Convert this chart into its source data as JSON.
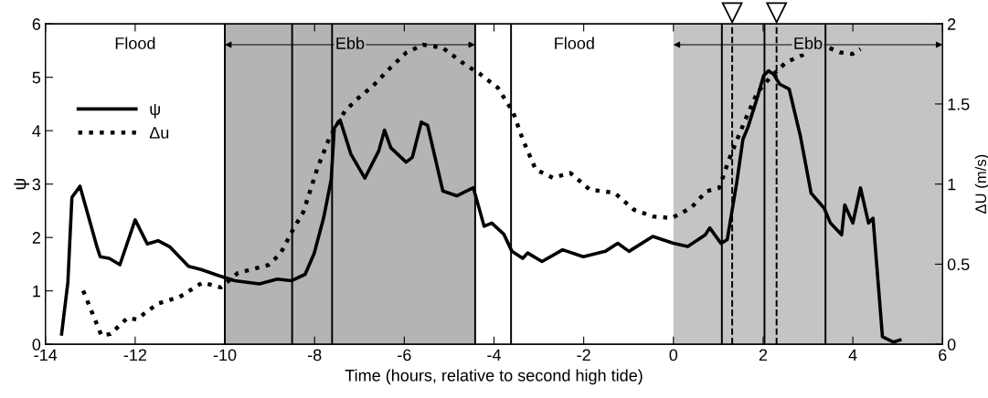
{
  "chart_data": {
    "type": "line",
    "xlabel": "Time (hours, relative to second high tide)",
    "ylabel": "ψ",
    "y2label": "ΔU (m/s)",
    "xlim": [
      -14,
      6
    ],
    "xticks": [
      -14,
      -12,
      -10,
      -8,
      -6,
      -4,
      -2,
      0,
      2,
      4,
      6
    ],
    "ylim": [
      0,
      6
    ],
    "yticks": [
      0,
      1,
      2,
      3,
      4,
      5,
      6
    ],
    "y2lim": [
      0,
      2
    ],
    "y2ticks": [
      0,
      0.5,
      1,
      1.5,
      2
    ],
    "legend": "top left",
    "grid": false,
    "series": [
      {
        "name": "ψ",
        "color": "#000000",
        "line_style": "solid",
        "x": [
          -13.64,
          -13.5,
          -13.41,
          -13.23,
          -12.85,
          -12.78,
          -12.58,
          -12.34,
          -12.0,
          -11.73,
          -11.49,
          -11.22,
          -10.81,
          -10.53,
          -10.12,
          -9.78,
          -9.23,
          -8.83,
          -8.52,
          -8.21,
          -8.01,
          -7.8,
          -7.63,
          -7.56,
          -7.43,
          -7.19,
          -6.88,
          -6.57,
          -6.44,
          -6.3,
          -5.96,
          -5.82,
          -5.62,
          -5.48,
          -5.14,
          -4.83,
          -4.46,
          -4.22,
          -4.05,
          -3.78,
          -3.6,
          -3.36,
          -3.25,
          -2.93,
          -2.47,
          -2.01,
          -1.52,
          -1.24,
          -0.99,
          -0.46,
          0,
          0.32,
          0.71,
          0.81,
          1.06,
          1.2,
          1.41,
          1.55,
          1.66,
          1.87,
          2.01,
          2.12,
          2.23,
          2.37,
          2.58,
          2.83,
          3.07,
          3.36,
          3.5,
          3.75,
          3.82,
          4.0,
          4.17,
          4.35,
          4.45,
          4.66,
          4.91,
          5.05
        ],
        "values": [
          0.19,
          1.16,
          2.75,
          2.96,
          1.82,
          1.64,
          1.61,
          1.49,
          2.33,
          1.88,
          1.94,
          1.82,
          1.46,
          1.4,
          1.28,
          1.19,
          1.13,
          1.22,
          1.19,
          1.31,
          1.7,
          2.36,
          3.08,
          4.05,
          4.2,
          3.56,
          3.11,
          3.62,
          4.01,
          3.68,
          3.41,
          3.5,
          4.16,
          4.1,
          2.87,
          2.78,
          2.93,
          2.21,
          2.27,
          2.06,
          1.74,
          1.61,
          1.71,
          1.55,
          1.77,
          1.64,
          1.74,
          1.89,
          1.74,
          2.02,
          1.89,
          1.83,
          2.05,
          2.18,
          1.89,
          1.96,
          3.02,
          3.84,
          4.06,
          4.62,
          5.03,
          5.12,
          5.06,
          4.87,
          4.78,
          3.9,
          2.83,
          2.55,
          2.27,
          2.05,
          2.61,
          2.27,
          2.93,
          2.27,
          2.36,
          0.14,
          0.04,
          0.08
        ]
      },
      {
        "name": "Δu",
        "color": "#000000",
        "line_style": "dotted",
        "axis": "y2",
        "x": [
          -13.16,
          -12.75,
          -12.55,
          -12.17,
          -11.97,
          -11.49,
          -11.01,
          -10.5,
          -10.09,
          -9.71,
          -9.03,
          -8.76,
          -8.48,
          -8.25,
          -7.94,
          -7.67,
          -7.32,
          -6.98,
          -6.71,
          -6.3,
          -5.96,
          -5.58,
          -5.14,
          -4.66,
          -4.32,
          -3.91,
          -3.57,
          -3.36,
          -3.07,
          -2.69,
          -2.3,
          -1.87,
          -1.31,
          -0.88,
          -0.46,
          -0.04,
          0.39,
          0.74,
          1.02,
          1.24,
          1.59,
          1.87,
          2.16,
          2.51,
          2.93,
          3.36,
          3.71,
          3.99,
          4.17
        ],
        "values": [
          0.335,
          0.054,
          0.064,
          0.165,
          0.155,
          0.255,
          0.295,
          0.385,
          0.355,
          0.445,
          0.495,
          0.566,
          0.716,
          0.826,
          1.097,
          1.288,
          1.458,
          1.549,
          1.609,
          1.729,
          1.82,
          1.87,
          1.85,
          1.749,
          1.689,
          1.6,
          1.446,
          1.279,
          1.091,
          1.039,
          1.07,
          0.966,
          0.945,
          0.84,
          0.798,
          0.788,
          0.851,
          0.955,
          0.976,
          1.154,
          1.394,
          1.572,
          1.666,
          1.76,
          1.812,
          1.864,
          1.822,
          1.812,
          1.843
        ]
      }
    ],
    "bands": [
      {
        "axis": "x",
        "from": -10,
        "to": -4.42,
        "label": "Ebb",
        "color": "#b4b4b4"
      },
      {
        "axis": "x",
        "from": 0,
        "to": 6,
        "label": "Ebb",
        "color": "#c4c4c4"
      }
    ],
    "ref_lines": [
      {
        "axis": "x",
        "value": -10,
        "color": "#000000",
        "line_style": "solid"
      },
      {
        "axis": "x",
        "value": -8.5,
        "color": "#000000",
        "line_style": "solid"
      },
      {
        "axis": "x",
        "value": -7.61,
        "color": "#000000",
        "line_style": "solid"
      },
      {
        "axis": "x",
        "value": -4.42,
        "color": "#000000",
        "line_style": "solid"
      },
      {
        "axis": "x",
        "value": -3.62,
        "color": "#000000",
        "line_style": "solid"
      },
      {
        "axis": "x",
        "value": 1.08,
        "color": "#000000",
        "line_style": "solid"
      },
      {
        "axis": "x",
        "value": 2.03,
        "color": "#000000",
        "line_style": "solid"
      },
      {
        "axis": "x",
        "value": 3.39,
        "color": "#000000",
        "line_style": "solid"
      },
      {
        "axis": "x",
        "value": 1.31,
        "color": "#000000",
        "line_style": "dashed"
      },
      {
        "axis": "x",
        "value": 2.3,
        "color": "#000000",
        "line_style": "dashed"
      }
    ],
    "annotations": [
      "Flood",
      "Flood"
    ]
  }
}
